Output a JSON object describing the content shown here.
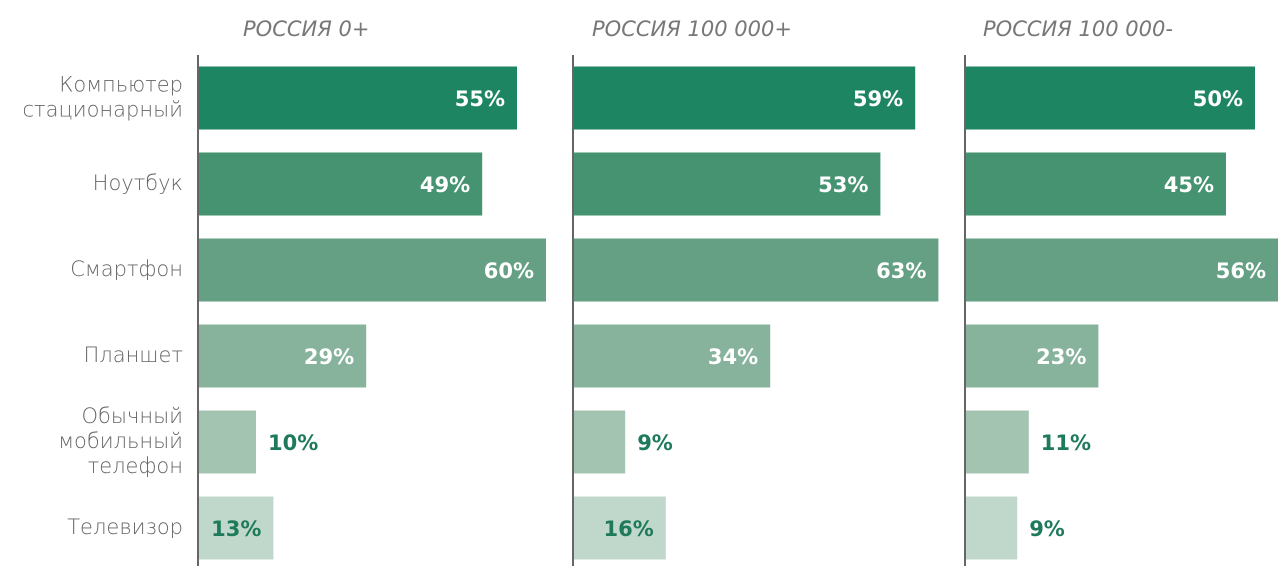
{
  "chart_data": {
    "type": "bar",
    "orientation": "horizontal",
    "categories": [
      [
        "Компьютер",
        "стационарный"
      ],
      [
        "Ноутбук"
      ],
      [
        "Смартфон"
      ],
      [
        "Планшет"
      ],
      [
        "Обычный",
        "мобильный",
        "телефон"
      ],
      [
        "Телевизор"
      ]
    ],
    "colors": [
      "#1e8562",
      "#459370",
      "#65a085",
      "#87b39d",
      "#a4c4b2",
      "#c0d8cb"
    ],
    "label_colors": [
      "#ffffff",
      "#ffffff",
      "#ffffff",
      "#ffffff",
      "#1e7a5a",
      "#1e7a5a"
    ],
    "panels": [
      {
        "title": "РОССИЯ 0+",
        "values": [
          55,
          49,
          60,
          29,
          10,
          13
        ],
        "value_labels": [
          "55%",
          "49%",
          "60%",
          "29%",
          "10%",
          "13%"
        ]
      },
      {
        "title": "РОССИЯ 100 000+",
        "values": [
          59,
          53,
          63,
          34,
          9,
          16
        ],
        "value_labels": [
          "59%",
          "53%",
          "63%",
          "34%",
          "9%",
          "16%"
        ]
      },
      {
        "title": "РОССИЯ 100 000-",
        "values": [
          50,
          45,
          56,
          23,
          11,
          9
        ],
        "value_labels": [
          "50%",
          "45%",
          "56%",
          "23%",
          "11%",
          "9%"
        ]
      }
    ]
  }
}
